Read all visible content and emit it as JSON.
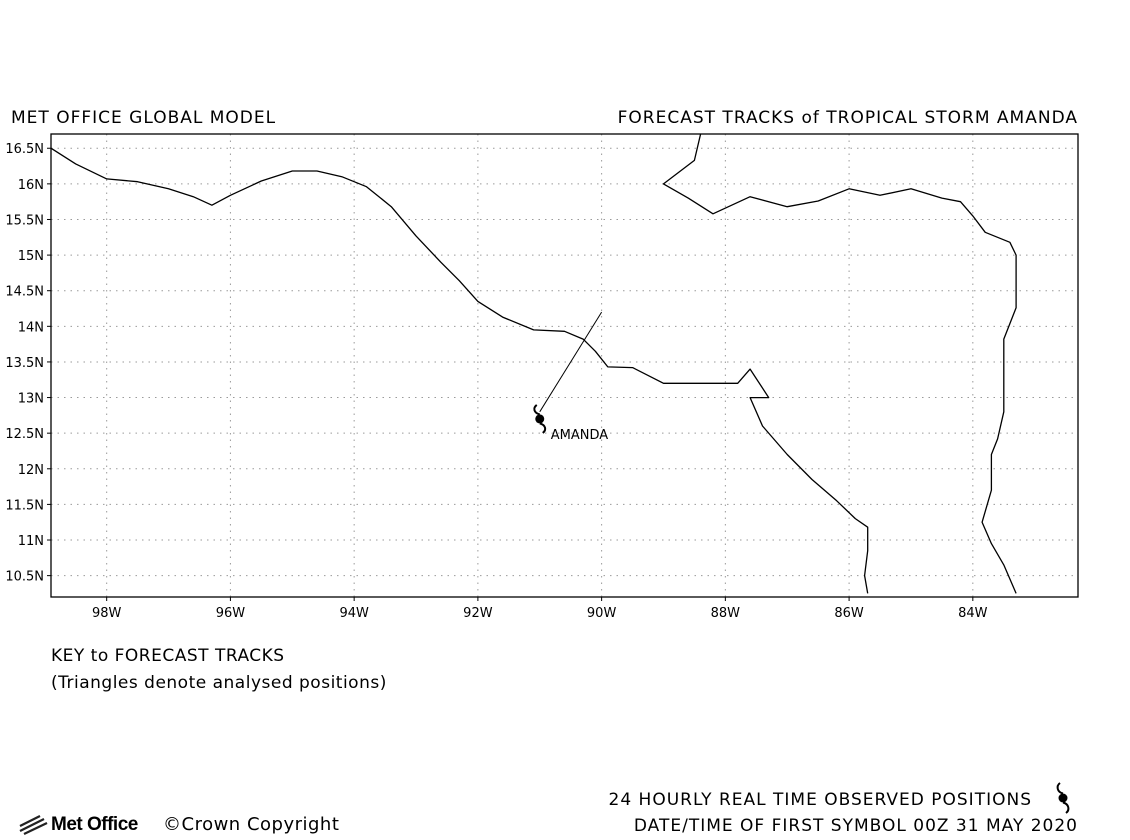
{
  "header": {
    "left_title": "MET OFFICE GLOBAL MODEL",
    "right_title": "FORECAST TRACKS of TROPICAL STORM AMANDA"
  },
  "map": {
    "lon_range": [
      -98.9,
      -82.3
    ],
    "lat_range": [
      10.2,
      16.7
    ],
    "lat_ticks": [
      {
        "value": 16.5,
        "label": "16.5N"
      },
      {
        "value": 16,
        "label": "16N"
      },
      {
        "value": 15.5,
        "label": "15.5N"
      },
      {
        "value": 15,
        "label": "15N"
      },
      {
        "value": 14.5,
        "label": "14.5N"
      },
      {
        "value": 14,
        "label": "14N"
      },
      {
        "value": 13.5,
        "label": "13.5N"
      },
      {
        "value": 13,
        "label": "13N"
      },
      {
        "value": 12.5,
        "label": "12.5N"
      },
      {
        "value": 12,
        "label": "12N"
      },
      {
        "value": 11.5,
        "label": "11.5N"
      },
      {
        "value": 11,
        "label": "11N"
      },
      {
        "value": 10.5,
        "label": "10.5N"
      }
    ],
    "lon_ticks": [
      {
        "value": -98,
        "label": "98W"
      },
      {
        "value": -96,
        "label": "96W"
      },
      {
        "value": -94,
        "label": "94W"
      },
      {
        "value": -92,
        "label": "92W"
      },
      {
        "value": -90,
        "label": "90W"
      },
      {
        "value": -88,
        "label": "88W"
      },
      {
        "value": -86,
        "label": "86W"
      },
      {
        "value": -84,
        "label": "84W"
      }
    ],
    "grid": true,
    "coastlines": [
      [
        [
          -98.9,
          16.5
        ],
        [
          -98.5,
          16.28
        ],
        [
          -98.0,
          16.07
        ],
        [
          -97.5,
          16.03
        ],
        [
          -97.0,
          15.93
        ],
        [
          -96.6,
          15.82
        ],
        [
          -96.3,
          15.7
        ],
        [
          -96.0,
          15.84
        ],
        [
          -95.5,
          16.04
        ],
        [
          -95.0,
          16.18
        ],
        [
          -94.6,
          16.18
        ],
        [
          -94.2,
          16.1
        ],
        [
          -93.8,
          15.96
        ],
        [
          -93.4,
          15.68
        ],
        [
          -93.0,
          15.27
        ],
        [
          -92.6,
          14.9
        ],
        [
          -92.3,
          14.64
        ],
        [
          -92.0,
          14.35
        ],
        [
          -91.6,
          14.13
        ],
        [
          -91.1,
          13.95
        ],
        [
          -90.6,
          13.93
        ],
        [
          -90.3,
          13.82
        ],
        [
          -90.1,
          13.65
        ],
        [
          -89.9,
          13.43
        ],
        [
          -89.5,
          13.42
        ],
        [
          -89.0,
          13.2
        ],
        [
          -88.5,
          13.2
        ],
        [
          -88.0,
          13.2
        ],
        [
          -87.8,
          13.2
        ],
        [
          -87.6,
          13.4
        ],
        [
          -87.3,
          13.0
        ],
        [
          -87.6,
          13.0
        ],
        [
          -87.4,
          12.6
        ],
        [
          -87.0,
          12.2
        ],
        [
          -86.6,
          11.85
        ],
        [
          -86.2,
          11.55
        ],
        [
          -85.9,
          11.3
        ],
        [
          -85.7,
          11.18
        ],
        [
          -85.7,
          10.85
        ],
        [
          -85.75,
          10.5
        ],
        [
          -85.7,
          10.25
        ]
      ],
      [
        [
          -88.4,
          16.7
        ],
        [
          -88.5,
          16.33
        ],
        [
          -89.0,
          16.0
        ],
        [
          -88.6,
          15.8
        ],
        [
          -88.2,
          15.58
        ],
        [
          -87.6,
          15.82
        ],
        [
          -87.0,
          15.68
        ],
        [
          -86.5,
          15.76
        ],
        [
          -86.0,
          15.93
        ],
        [
          -85.5,
          15.84
        ],
        [
          -85.0,
          15.93
        ],
        [
          -84.5,
          15.8
        ],
        [
          -84.2,
          15.75
        ],
        [
          -84.0,
          15.55
        ],
        [
          -83.8,
          15.32
        ],
        [
          -83.4,
          15.18
        ],
        [
          -83.3,
          15.0
        ],
        [
          -83.3,
          14.6
        ],
        [
          -83.3,
          14.26
        ],
        [
          -83.5,
          13.82
        ],
        [
          -83.5,
          13.5
        ],
        [
          -83.5,
          12.8
        ],
        [
          -83.6,
          12.42
        ],
        [
          -83.7,
          12.2
        ],
        [
          -83.7,
          11.7
        ],
        [
          -83.85,
          11.25
        ],
        [
          -83.7,
          10.95
        ],
        [
          -83.5,
          10.65
        ],
        [
          -83.3,
          10.25
        ]
      ]
    ],
    "storm": {
      "name": "AMANDA",
      "position": [
        -91.0,
        12.7
      ],
      "track": [
        [
          -90.0,
          14.2
        ],
        [
          -91.0,
          12.8
        ]
      ]
    }
  },
  "key": {
    "title": "KEY to FORECAST TRACKS",
    "note": "(Triangles denote analysed positions)"
  },
  "footer": {
    "observed_label": "24 HOURLY REAL TIME OBSERVED POSITIONS",
    "date_label": "DATE/TIME OF FIRST SYMBOL 00Z 31 MAY 2020",
    "logo_text": "Met Office",
    "copyright": "©Crown Copyright"
  }
}
